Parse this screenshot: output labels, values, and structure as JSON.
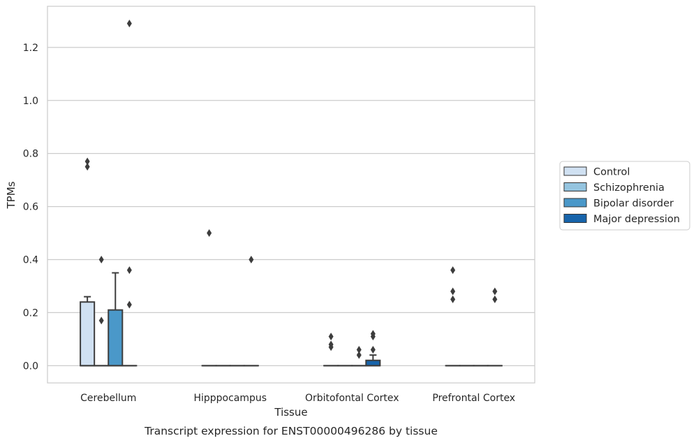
{
  "caption": "Transcript expression for ENST00000496286 by tissue",
  "chart_data": {
    "type": "box",
    "xlabel": "Tissue",
    "ylabel": "TPMs",
    "ylim": [
      -0.065,
      1.355
    ],
    "yticks": [
      "0.0",
      "0.2",
      "0.4",
      "0.6",
      "0.8",
      "1.0",
      "1.2"
    ],
    "grid": true,
    "legend_position": "right",
    "categories": [
      "Cerebellum",
      "Hipppocampus",
      "Orbitofontal Cortex",
      "Prefrontal Cortex"
    ],
    "series": [
      {
        "name": "Control",
        "color": "#d0e1f2",
        "boxes": [
          {
            "q1": 0,
            "median": 0,
            "q3": 0.24,
            "whisker_low": 0,
            "whisker_high": 0.26,
            "outliers": [
              0.75,
              0.77
            ]
          },
          {
            "q1": 0,
            "median": 0,
            "q3": 0,
            "whisker_low": 0,
            "whisker_high": 0,
            "outliers": [
              0.5
            ]
          },
          {
            "q1": 0,
            "median": 0,
            "q3": 0,
            "whisker_low": 0,
            "whisker_high": 0,
            "outliers": [
              0.07,
              0.08,
              0.11
            ]
          },
          {
            "q1": 0,
            "median": 0,
            "q3": 0,
            "whisker_low": 0,
            "whisker_high": 0,
            "outliers": [
              0.25,
              0.28,
              0.36
            ]
          }
        ]
      },
      {
        "name": "Schizophrenia",
        "color": "#94c4df",
        "boxes": [
          {
            "q1": 0,
            "median": 0,
            "q3": 0,
            "whisker_low": 0,
            "whisker_high": 0,
            "outliers": [
              0.17,
              0.4
            ]
          },
          {
            "q1": 0,
            "median": 0,
            "q3": 0,
            "whisker_low": 0,
            "whisker_high": 0,
            "outliers": []
          },
          {
            "q1": 0,
            "median": 0,
            "q3": 0,
            "whisker_low": 0,
            "whisker_high": 0,
            "outliers": []
          },
          {
            "q1": 0,
            "median": 0,
            "q3": 0,
            "whisker_low": 0,
            "whisker_high": 0,
            "outliers": []
          }
        ]
      },
      {
        "name": "Bipolar disorder",
        "color": "#4a98c9",
        "boxes": [
          {
            "q1": 0,
            "median": 0,
            "q3": 0.21,
            "whisker_low": 0,
            "whisker_high": 0.35,
            "outliers": []
          },
          {
            "q1": 0,
            "median": 0,
            "q3": 0,
            "whisker_low": 0,
            "whisker_high": 0,
            "outliers": []
          },
          {
            "q1": 0,
            "median": 0,
            "q3": 0,
            "whisker_low": 0,
            "whisker_high": 0,
            "outliers": [
              0.04,
              0.06
            ]
          },
          {
            "q1": 0,
            "median": 0,
            "q3": 0,
            "whisker_low": 0,
            "whisker_high": 0,
            "outliers": []
          }
        ]
      },
      {
        "name": "Major depression",
        "color": "#1764ab",
        "boxes": [
          {
            "q1": 0,
            "median": 0,
            "q3": 0,
            "whisker_low": 0,
            "whisker_high": 0,
            "outliers": [
              0.23,
              0.36,
              1.29
            ]
          },
          {
            "q1": 0,
            "median": 0,
            "q3": 0,
            "whisker_low": 0,
            "whisker_high": 0,
            "outliers": [
              0.4
            ]
          },
          {
            "q1": 0,
            "median": 0,
            "q3": 0.02,
            "whisker_low": 0,
            "whisker_high": 0.04,
            "outliers": [
              0.06,
              0.11,
              0.12
            ]
          },
          {
            "q1": 0,
            "median": 0,
            "q3": 0,
            "whisker_low": 0,
            "whisker_high": 0,
            "outliers": [
              0.25,
              0.28
            ]
          }
        ]
      }
    ]
  }
}
